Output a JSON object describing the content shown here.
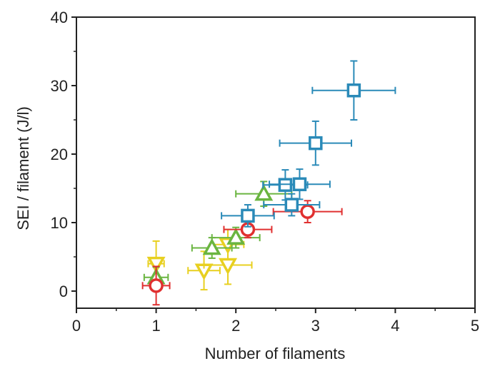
{
  "chart_data": {
    "type": "scatter",
    "title": "",
    "xlabel": "Number of filaments",
    "ylabel": "SEI / filament (J/l)",
    "xlim": [
      0,
      5
    ],
    "ylim": [
      -2.5,
      40
    ],
    "xticks": [
      "0",
      "1",
      "2",
      "3",
      "4",
      "5"
    ],
    "yticks": [
      "0",
      "10",
      "20",
      "30",
      "40"
    ],
    "grid": false,
    "legend": "none",
    "series": [
      {
        "marker": "square",
        "color": "#2a8ab8",
        "points": [
          {
            "x": 3.48,
            "y": 29.3,
            "xerr": 0.52,
            "yerr": 4.3
          },
          {
            "x": 3.0,
            "y": 21.6,
            "xerr": 0.45,
            "yerr": 3.2
          },
          {
            "x": 2.62,
            "y": 15.5,
            "xerr": 0.28,
            "yerr": 2.2
          },
          {
            "x": 2.8,
            "y": 15.6,
            "xerr": 0.38,
            "yerr": 2.2
          },
          {
            "x": 2.7,
            "y": 12.6,
            "xerr": 0.35,
            "yerr": 1.6
          },
          {
            "x": 2.15,
            "y": 11.0,
            "xerr": 0.33,
            "yerr": 1.6
          }
        ]
      },
      {
        "marker": "circle",
        "color": "#e03030",
        "points": [
          {
            "x": 2.9,
            "y": 11.6,
            "xerr": 0.43,
            "yerr": 1.6
          },
          {
            "x": 2.15,
            "y": 9.0,
            "xerr": 0.3,
            "yerr": 1.2
          },
          {
            "x": 1.0,
            "y": 0.8,
            "xerr": 0.17,
            "yerr": 2.8
          }
        ]
      },
      {
        "marker": "triangle-up",
        "color": "#6ab540",
        "points": [
          {
            "x": 2.35,
            "y": 14.2,
            "xerr": 0.35,
            "yerr": 1.8
          },
          {
            "x": 1.7,
            "y": 6.3,
            "xerr": 0.25,
            "yerr": 1.5
          },
          {
            "x": 2.0,
            "y": 7.8,
            "xerr": 0.3,
            "yerr": 1.5
          },
          {
            "x": 1.0,
            "y": 2.0,
            "xerr": 0.15,
            "yerr": 1.5
          }
        ]
      },
      {
        "marker": "triangle-down",
        "color": "#e8d020",
        "points": [
          {
            "x": 1.0,
            "y": 4.0,
            "xerr": 0.1,
            "yerr": 3.3
          },
          {
            "x": 1.6,
            "y": 3.0,
            "xerr": 0.2,
            "yerr": 2.8
          },
          {
            "x": 1.9,
            "y": 3.8,
            "xerr": 0.3,
            "yerr": 2.8
          },
          {
            "x": 1.9,
            "y": 6.8,
            "xerr": 0.2,
            "yerr": 2.2
          }
        ]
      }
    ]
  }
}
